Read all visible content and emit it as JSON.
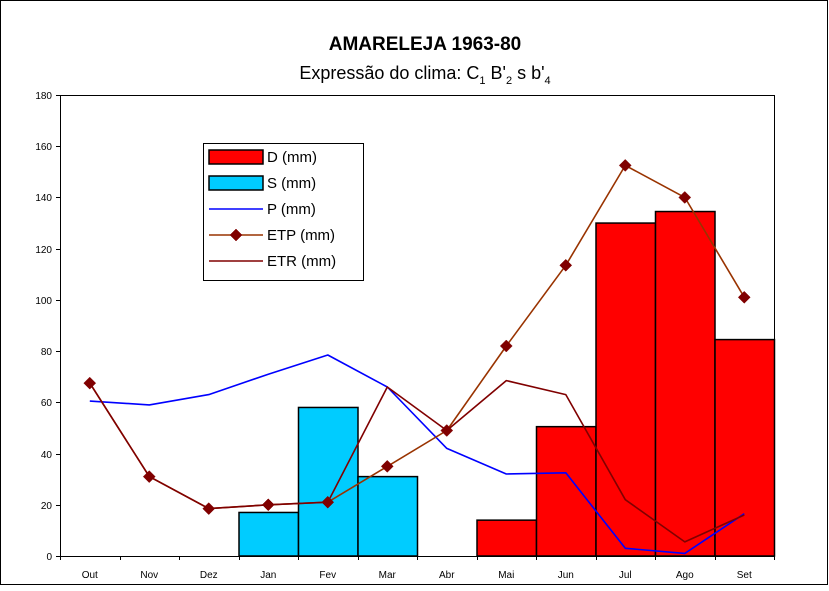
{
  "chart_data": {
    "type": "bar",
    "title": "AMARELEJA 1963-80",
    "subtitle": {
      "prefix": "Expressão do clima: C",
      "s1": "1",
      "mid1": " B'",
      "s2": "2",
      "mid2": " s b'",
      "s3": "4"
    },
    "categories": [
      "Out",
      "Nov",
      "Dez",
      "Jan",
      "Fev",
      "Mar",
      "Abr",
      "Mai",
      "Jun",
      "Jul",
      "Ago",
      "Set"
    ],
    "ylim": [
      0,
      180
    ],
    "yticks": [
      0,
      20,
      40,
      60,
      80,
      100,
      120,
      140,
      160,
      180
    ],
    "grid": false,
    "legend_position": "upper-left",
    "series": [
      {
        "name": "D (mm)",
        "kind": "bar",
        "color": "#ff0000",
        "values": [
          null,
          null,
          null,
          null,
          null,
          null,
          null,
          14,
          50.5,
          130,
          134.5,
          84.5
        ]
      },
      {
        "name": "S (mm)",
        "kind": "bar",
        "color": "#00ccff",
        "values": [
          null,
          null,
          null,
          17,
          58,
          31,
          null,
          null,
          null,
          null,
          null,
          null
        ]
      },
      {
        "name": "P (mm)",
        "kind": "line",
        "color": "#0000ff",
        "marker": "none",
        "values": [
          60.5,
          59,
          63,
          71,
          78.5,
          66,
          42,
          32,
          32.5,
          3,
          1,
          16.5
        ]
      },
      {
        "name": "ETP (mm)",
        "kind": "line",
        "color": "#993300",
        "marker": "diamond",
        "marker_color": "#800000",
        "values": [
          67.5,
          31,
          18.5,
          20,
          21,
          35,
          49,
          82,
          113.5,
          152.5,
          140,
          101
        ]
      },
      {
        "name": "ETR (mm)",
        "kind": "line",
        "color": "#800000",
        "marker": "none",
        "values": [
          67.5,
          31,
          18.5,
          20,
          21,
          66,
          49,
          68.5,
          63,
          22,
          5.5,
          16
        ]
      }
    ]
  }
}
